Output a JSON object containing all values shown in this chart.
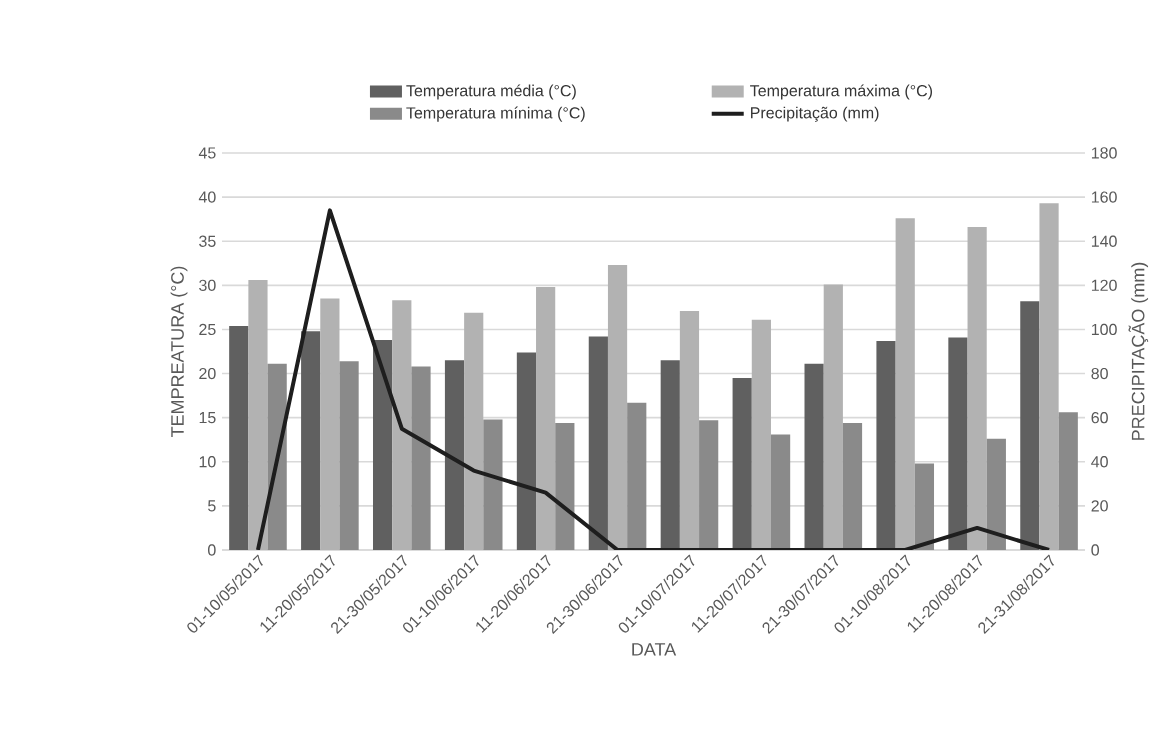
{
  "chart_data": {
    "type": "bar",
    "categories": [
      "01-10/05/2017",
      "11-20/05/2017",
      "21-30/05/2017",
      "01-10/06/2017",
      "11-20/06/2017",
      "21-30/06/2017",
      "01-10/07/2017",
      "11-20/07/2017",
      "21-30/07/2017",
      "01-10/08/2017",
      "11-20/08/2017",
      "21-31/08/2017"
    ],
    "series": [
      {
        "name": "Temperatura média (°C)",
        "color": "#606060",
        "values": [
          25.4,
          24.8,
          23.8,
          21.5,
          22.4,
          24.2,
          21.5,
          19.5,
          21.1,
          23.7,
          24.1,
          28.2
        ]
      },
      {
        "name": "Temperatura máxima (°C)",
        "color": "#b2b2b2",
        "values": [
          30.6,
          28.5,
          28.3,
          26.9,
          29.8,
          32.3,
          27.1,
          26.1,
          30.1,
          37.6,
          36.6,
          39.3
        ]
      },
      {
        "name": "Temperatura mínima (°C)",
        "color": "#8a8a8a",
        "values": [
          21.1,
          21.4,
          20.8,
          14.8,
          14.4,
          16.7,
          14.7,
          13.1,
          14.4,
          9.8,
          12.6,
          15.6
        ]
      },
      {
        "name": "Precipitação (mm)",
        "color": "#1e1e1e",
        "type": "line",
        "axis": "y2",
        "values": [
          0,
          154,
          55,
          36,
          26,
          0,
          0,
          0,
          0,
          0,
          10,
          0
        ]
      }
    ],
    "xlabel": "DATA",
    "ylabel": "TEMPREATURA (°C)",
    "y2label": "PRECIPITAÇÃO (mm)",
    "ylim": [
      0,
      45
    ],
    "yticks": [
      0,
      5,
      10,
      15,
      20,
      25,
      30,
      35,
      40,
      45
    ],
    "y2lim": [
      0,
      180
    ],
    "y2ticks": [
      0,
      20,
      40,
      60,
      80,
      100,
      120,
      140,
      160,
      180
    ],
    "grid": "y",
    "legend": "top",
    "marker": "none"
  }
}
